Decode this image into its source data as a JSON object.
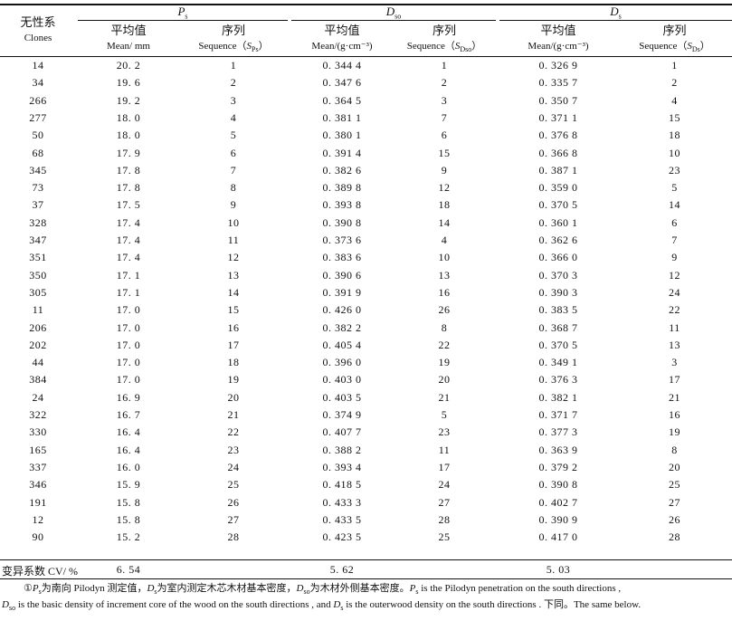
{
  "header": {
    "clone_cn": "无性系",
    "clone_en": "Clones",
    "groups": [
      {
        "symbol": "P",
        "sub": "s"
      },
      {
        "symbol": "D",
        "sub": "so"
      },
      {
        "symbol": "D",
        "sub": "s"
      }
    ],
    "mean_cn": "平均值",
    "seq_cn": "序列",
    "mean_en_ps": "Mean/ mm",
    "mean_en_d": "Mean/(g·cm⁻³)",
    "seq_en_prefix": "Sequence（",
    "seq_en_suffix": "）",
    "seq_syms": [
      {
        "symbol": "S",
        "sub": "Ps"
      },
      {
        "symbol": "S",
        "sub": "Dso"
      },
      {
        "symbol": "S",
        "sub": "Ds"
      }
    ]
  },
  "rows": [
    [
      "14",
      "20. 2",
      "1",
      "0. 344 4",
      "1",
      "0. 326 9",
      "1"
    ],
    [
      "34",
      "19. 6",
      "2",
      "0. 347 6",
      "2",
      "0. 335 7",
      "2"
    ],
    [
      "266",
      "19. 2",
      "3",
      "0. 364 5",
      "3",
      "0. 350 7",
      "4"
    ],
    [
      "277",
      "18. 0",
      "4",
      "0. 381 1",
      "7",
      "0. 371 1",
      "15"
    ],
    [
      "50",
      "18. 0",
      "5",
      "0. 380 1",
      "6",
      "0. 376 8",
      "18"
    ],
    [
      "68",
      "17. 9",
      "6",
      "0. 391 4",
      "15",
      "0. 366 8",
      "10"
    ],
    [
      "345",
      "17. 8",
      "7",
      "0. 382 6",
      "9",
      "0. 387 1",
      "23"
    ],
    [
      "73",
      "17. 8",
      "8",
      "0. 389 8",
      "12",
      "0. 359 0",
      "5"
    ],
    [
      "37",
      "17. 5",
      "9",
      "0. 393 8",
      "18",
      "0. 370 5",
      "14"
    ],
    [
      "328",
      "17. 4",
      "10",
      "0. 390 8",
      "14",
      "0. 360 1",
      "6"
    ],
    [
      "347",
      "17. 4",
      "11",
      "0. 373 6",
      "4",
      "0. 362 6",
      "7"
    ],
    [
      "351",
      "17. 4",
      "12",
      "0. 383 6",
      "10",
      "0. 366 0",
      "9"
    ],
    [
      "350",
      "17. 1",
      "13",
      "0. 390 6",
      "13",
      "0. 370 3",
      "12"
    ],
    [
      "305",
      "17. 1",
      "14",
      "0. 391 9",
      "16",
      "0. 390 3",
      "24"
    ],
    [
      "11",
      "17. 0",
      "15",
      "0. 426 0",
      "26",
      "0. 383 5",
      "22"
    ],
    [
      "206",
      "17. 0",
      "16",
      "0. 382 2",
      "8",
      "0. 368 7",
      "11"
    ],
    [
      "202",
      "17. 0",
      "17",
      "0. 405 4",
      "22",
      "0. 370 5",
      "13"
    ],
    [
      "44",
      "17. 0",
      "18",
      "0. 396 0",
      "19",
      "0. 349 1",
      "3"
    ],
    [
      "384",
      "17. 0",
      "19",
      "0. 403 0",
      "20",
      "0. 376 3",
      "17"
    ],
    [
      "24",
      "16. 9",
      "20",
      "0. 403 5",
      "21",
      "0. 382 1",
      "21"
    ],
    [
      "322",
      "16. 7",
      "21",
      "0. 374 9",
      "5",
      "0. 371 7",
      "16"
    ],
    [
      "330",
      "16. 4",
      "22",
      "0. 407 7",
      "23",
      "0. 377 3",
      "19"
    ],
    [
      "165",
      "16. 4",
      "23",
      "0. 388 2",
      "11",
      "0. 363 9",
      "8"
    ],
    [
      "337",
      "16. 0",
      "24",
      "0. 393 4",
      "17",
      "0. 379 2",
      "20"
    ],
    [
      "346",
      "15. 9",
      "25",
      "0. 418 5",
      "24",
      "0. 390 8",
      "25"
    ],
    [
      "191",
      "15. 8",
      "26",
      "0. 433 3",
      "27",
      "0. 402 7",
      "27"
    ],
    [
      "12",
      "15. 8",
      "27",
      "0. 433 5",
      "28",
      "0. 390 9",
      "26"
    ],
    [
      "90",
      "15. 2",
      "28",
      "0. 423 5",
      "25",
      "0. 417 0",
      "28"
    ]
  ],
  "cv": {
    "label": "变异系数 CV/ %",
    "values": [
      "6. 54",
      "5. 62",
      "5. 03"
    ]
  },
  "footnote": {
    "line1_a": "①",
    "line1_b": "为南向 Pilodyn 测定值，",
    "line1_c": "为室内测定木芯木材基本密度，",
    "line1_d": "为木材外侧基本密度。",
    "line1_e": " is the Pilodyn penetration on the south directions ,",
    "line2_a": " is the basic density of increment core of the wood on the south directions , and ",
    "line2_b": " is the outerwood density on the south directions . 下同。The same below."
  }
}
